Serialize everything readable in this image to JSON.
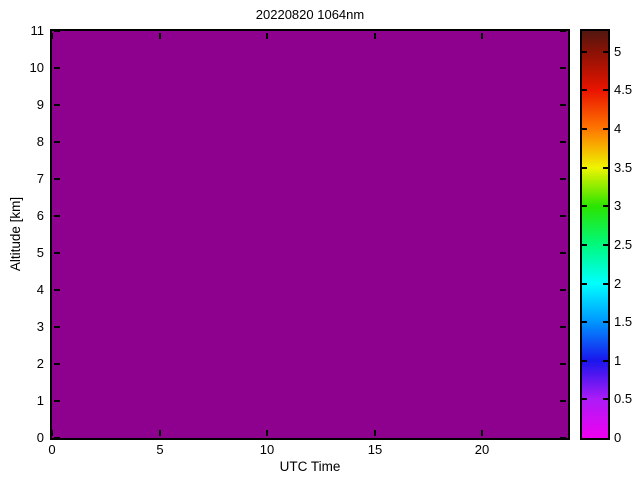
{
  "figure": {
    "background_color": "#FFFFFF",
    "frame_color": "#000000"
  },
  "chart_data": {
    "type": "heatmap",
    "title": "20220820 1064nm",
    "xlabel": "UTC Time",
    "ylabel": "Altitude [km]",
    "xlim": [
      0,
      24
    ],
    "ylim": [
      0,
      11
    ],
    "x_ticks": [
      0,
      5,
      10,
      15,
      20
    ],
    "y_ticks": [
      0,
      1,
      2,
      3,
      4,
      5,
      6,
      7,
      8,
      9,
      10,
      11
    ],
    "grid": false,
    "legend": false,
    "data_description": "Entire time-altitude field renders a single uniform dark-magenta color, i.e. a constant value at the very bottom of the color scale (~0) for all UTC times 0-24 and altitudes 0-11 km.",
    "uniform_fill_color": "#8E008E",
    "colorbar": {
      "position": "right",
      "min": 0,
      "max": 5.27,
      "tick_values": [
        0,
        0.5,
        1,
        1.5,
        2,
        2.5,
        3,
        3.5,
        4,
        4.5,
        5
      ],
      "tick_labels": [
        "0",
        "0.5",
        "1",
        "1.5",
        "2",
        "2.5",
        "3",
        "3.5",
        "4",
        "4.5",
        "5"
      ],
      "gradient": [
        {
          "value": 5.27,
          "color": "#521710"
        },
        {
          "value": 5.0,
          "color": "#8A1205"
        },
        {
          "value": 4.5,
          "color": "#EA1400"
        },
        {
          "value": 4.0,
          "color": "#FF7800"
        },
        {
          "value": 3.5,
          "color": "#EEF400"
        },
        {
          "value": 3.0,
          "color": "#2BE400"
        },
        {
          "value": 2.5,
          "color": "#00F97E"
        },
        {
          "value": 2.0,
          "color": "#00FFFF"
        },
        {
          "value": 1.5,
          "color": "#0095FF"
        },
        {
          "value": 1.0,
          "color": "#1A15EC"
        },
        {
          "value": 0.5,
          "color": "#AD1BF7"
        },
        {
          "value": 0.0,
          "color": "#EF00EF"
        }
      ]
    }
  }
}
